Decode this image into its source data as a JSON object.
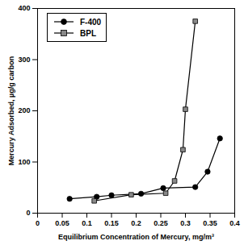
{
  "chart_data": {
    "type": "line",
    "x_label": "Equilibrium Concentration of Mercury, mg/m³",
    "y_label": "Mercury Adsorbed, µg/g carbon",
    "series": [
      {
        "name": "F-400",
        "color": "#000000",
        "marker": "circle",
        "line_style": "solid",
        "x": [
          0.065,
          0.12,
          0.15,
          0.21,
          0.255,
          0.32,
          0.345,
          0.37
        ],
        "values": [
          28,
          32,
          35,
          38,
          49,
          51,
          81,
          146
        ]
      },
      {
        "name": "BPL",
        "color": "#888888",
        "marker": "square",
        "line_style": "solid",
        "x": [
          0.115,
          0.19,
          0.26,
          0.278,
          0.295,
          0.3,
          0.32
        ],
        "values": [
          24,
          36,
          39,
          63,
          124,
          203,
          375
        ]
      }
    ],
    "xlim": [
      0,
      0.4
    ],
    "xticks": [
      0,
      0.05,
      0.1,
      0.15,
      0.2,
      0.25,
      0.3,
      0.35,
      0.4
    ],
    "ylim": [
      0,
      400
    ],
    "yticks": [
      0,
      100,
      200,
      300,
      400
    ],
    "grid": false,
    "legend": "upper left"
  }
}
